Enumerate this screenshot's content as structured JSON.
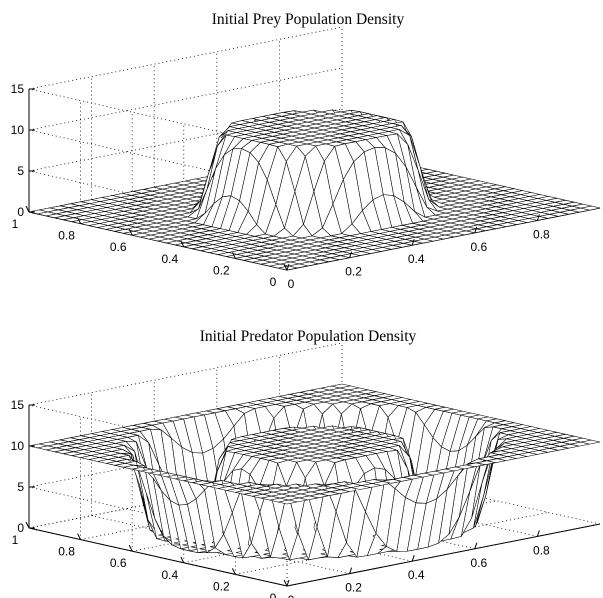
{
  "chart_data": [
    {
      "type": "surface",
      "title": "Initial Prey Population Density",
      "grid": true,
      "zlim": [
        0,
        15
      ],
      "z_ticks": [
        "0",
        "5",
        "10",
        "15"
      ],
      "x_ticks": [
        "0",
        "0.2",
        "0.4",
        "0.6",
        "0.8"
      ],
      "y_ticks": [
        "0",
        "0.2",
        "0.4",
        "0.6",
        "0.8",
        "1"
      ],
      "grid_size": 31,
      "surface": {
        "shape": "plateau",
        "center": [
          0.5,
          0.5
        ],
        "inner_radius": 0.22,
        "outer_radius": 0.3,
        "base_level": 0,
        "plateau_level": 10
      }
    },
    {
      "type": "surface",
      "title": "Initial Predator Population Density",
      "grid": true,
      "zlim": [
        0,
        15
      ],
      "z_ticks": [
        "0",
        "5",
        "10",
        "15"
      ],
      "x_ticks": [
        "0",
        "0.2",
        "0.4",
        "0.6",
        "0.8"
      ],
      "y_ticks": [
        "0",
        "0.2",
        "0.4",
        "0.6",
        "0.8",
        "1"
      ],
      "grid_size": 31,
      "surface": {
        "shape": "ring",
        "center": [
          0.5,
          0.5
        ],
        "ring_inner": 0.28,
        "ring_outer": 0.4,
        "edge": 0.06,
        "base_level": 0,
        "outside_level": 10,
        "center_level": 10
      }
    }
  ]
}
